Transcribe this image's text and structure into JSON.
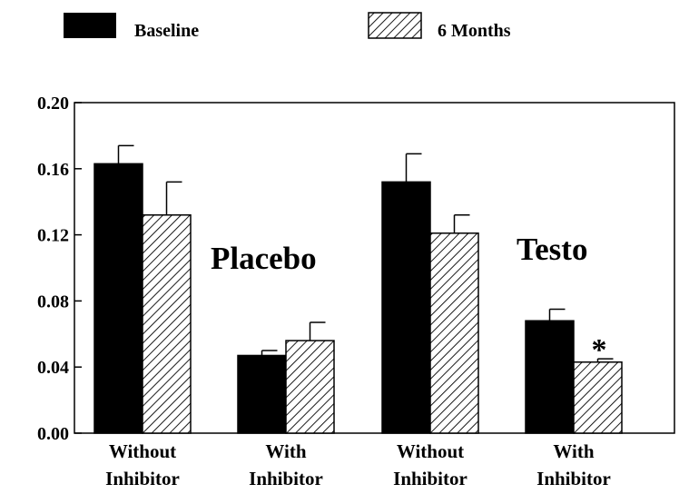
{
  "chart_data": {
    "type": "bar",
    "title": "",
    "xlabel": "",
    "ylabel": "",
    "ylim": [
      0,
      0.2
    ],
    "yticks": [
      "0.00",
      "0.04",
      "0.08",
      "0.12",
      "0.16",
      "0.20"
    ],
    "categories": [
      [
        "Without",
        "Inhibitor"
      ],
      [
        "With",
        "Inhibitor"
      ],
      [
        "Without",
        "Inhibitor"
      ],
      [
        "With",
        "Inhibitor"
      ]
    ],
    "series": [
      {
        "name": "Baseline",
        "pattern": "solid",
        "color": "#000000",
        "values": [
          0.163,
          0.047,
          0.152,
          0.068
        ],
        "errors": [
          0.011,
          0.003,
          0.017,
          0.007
        ]
      },
      {
        "name": "6 Months",
        "pattern": "hatched",
        "color": "#000000",
        "values": [
          0.132,
          0.056,
          0.121,
          0.043
        ],
        "errors": [
          0.02,
          0.011,
          0.011,
          0.002
        ]
      }
    ],
    "group_labels": [
      "Placebo",
      "Testo"
    ],
    "annotations": [
      "*"
    ],
    "grid": false,
    "legend_position": "top"
  }
}
